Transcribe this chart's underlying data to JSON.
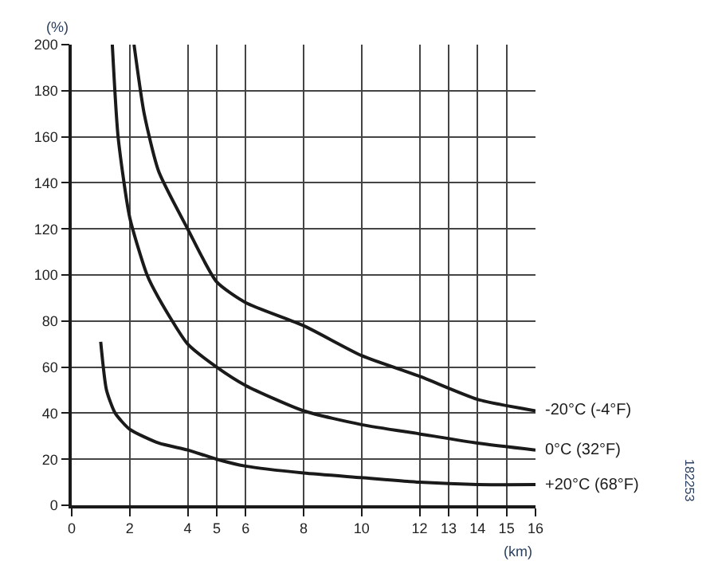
{
  "chart_data": {
    "type": "line",
    "xlabel": "(km)",
    "ylabel": "(%)",
    "xlim": [
      0,
      16
    ],
    "xticks": [
      0,
      2,
      4,
      5,
      6,
      8,
      10,
      12,
      13,
      14,
      15,
      16
    ],
    "ylim": [
      0,
      200
    ],
    "yticks": [
      0,
      20,
      40,
      60,
      80,
      100,
      120,
      140,
      160,
      180,
      200
    ],
    "grid": true,
    "legend": false,
    "marker": "none",
    "line_style": "solid",
    "series": [
      {
        "name": "-20°C (-4°F)",
        "color": "#1a1a1a",
        "x": [
          2.15,
          2.5,
          3,
          4,
          5,
          6,
          8,
          10,
          12,
          14,
          16
        ],
        "values": [
          200,
          170,
          145,
          120,
          97,
          88,
          78,
          65,
          56,
          46,
          41
        ]
      },
      {
        "name": "0°C (32°F)",
        "color": "#1a1a1a",
        "x": [
          1.4,
          1.6,
          2,
          2.6,
          3,
          4,
          5,
          6,
          8,
          10,
          12,
          14,
          16
        ],
        "values": [
          200,
          160,
          125,
          100,
          90,
          70,
          60,
          52,
          41,
          35,
          31,
          27,
          24
        ]
      },
      {
        "name": "+20°C (68°F)",
        "color": "#1a1a1a",
        "x": [
          1,
          1.2,
          1.5,
          2,
          3,
          4,
          5,
          6,
          8,
          10,
          12,
          14,
          16
        ],
        "values": [
          71,
          50,
          40,
          33,
          27,
          24,
          20,
          17,
          14,
          12,
          10,
          9,
          9
        ]
      }
    ],
    "annotations": [
      "182253"
    ]
  }
}
